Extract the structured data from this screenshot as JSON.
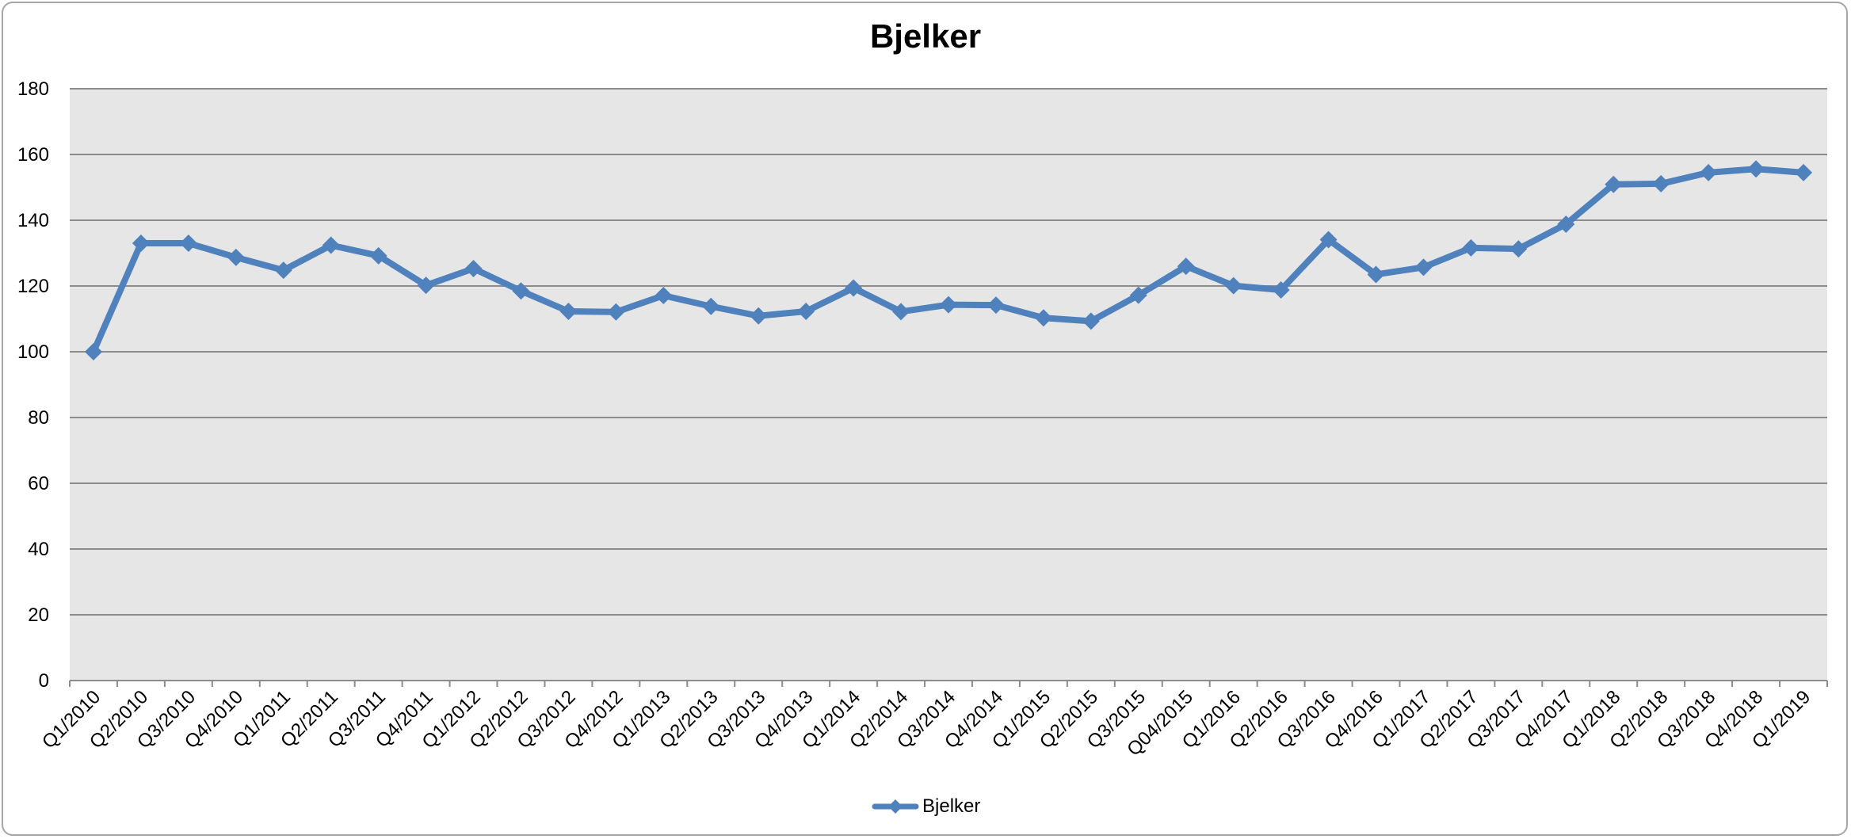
{
  "chart_data": {
    "type": "line",
    "title": "Bjelker",
    "xlabel": "",
    "ylabel": "",
    "ylim": [
      0,
      180
    ],
    "yticks": [
      0,
      20,
      40,
      60,
      80,
      100,
      120,
      140,
      160,
      180
    ],
    "grid": true,
    "legend_position": "bottom",
    "plot_background": "#e6e6e6",
    "series_color": "#4f81bd",
    "categories": [
      "Q1/2010",
      "Q2/2010",
      "Q3/2010",
      "Q4/2010",
      "Q1/2011",
      "Q2/2011",
      "Q3/2011",
      "Q4/2011",
      "Q1/2012",
      "Q2/2012",
      "Q3/2012",
      "Q4/2012",
      "Q1/2013",
      "Q2/2013",
      "Q3/2013",
      "Q4/2013",
      "Q1/2014",
      "Q2/2014",
      "Q3/2014",
      "Q4/2014",
      "Q1/2015",
      "Q2/2015",
      "Q3/2015",
      "Q04/2015",
      "Q1/2016",
      "Q2/2016",
      "Q3/2016",
      "Q4/2016",
      "Q1/2017",
      "Q2/2017",
      "Q3/2017",
      "Q4/2017",
      "Q1/2018",
      "Q2/2018",
      "Q3/2018",
      "Q4/2018",
      "Q1/2019"
    ],
    "series": [
      {
        "name": "Bjelker",
        "values": [
          100,
          133,
          133,
          128.7,
          124.8,
          132.4,
          129.2,
          120.2,
          125.3,
          118.5,
          112.3,
          112.1,
          117.1,
          113.8,
          110.9,
          112.3,
          119.4,
          112.2,
          114.3,
          114.2,
          110.3,
          109.3,
          117.2,
          126,
          120.1,
          118.8,
          134.1,
          123.5,
          125.7,
          131.6,
          131.3,
          138.8,
          150.9,
          151.1,
          154.5,
          155.6,
          154.5
        ]
      }
    ]
  }
}
